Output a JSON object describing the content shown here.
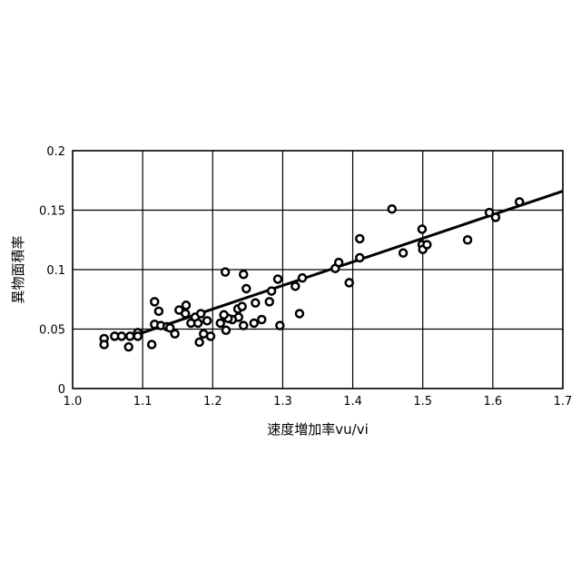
{
  "chart_data": {
    "type": "scatter",
    "title": "",
    "xlabel": "速度増加率vu/vi",
    "ylabel": "異物面積率",
    "xlim": [
      1.0,
      1.7
    ],
    "ylim": [
      0,
      0.2
    ],
    "xticks": [
      "1.0",
      "1.1",
      "1.2",
      "1.3",
      "1.4",
      "1.5",
      "1.6",
      "1.7"
    ],
    "yticks": [
      "0",
      "0.05",
      "0.1",
      "0.15",
      "0.2"
    ],
    "grid": true,
    "legend": "none",
    "marker": "open-circle",
    "color": "#000000",
    "points": [
      [
        1.045,
        0.042
      ],
      [
        1.045,
        0.037
      ],
      [
        1.06,
        0.044
      ],
      [
        1.07,
        0.044
      ],
      [
        1.082,
        0.044
      ],
      [
        1.08,
        0.035
      ],
      [
        1.093,
        0.047
      ],
      [
        1.093,
        0.044
      ],
      [
        1.113,
        0.037
      ],
      [
        1.117,
        0.073
      ],
      [
        1.123,
        0.065
      ],
      [
        1.117,
        0.054
      ],
      [
        1.126,
        0.053
      ],
      [
        1.135,
        0.052
      ],
      [
        1.146,
        0.046
      ],
      [
        1.152,
        0.066
      ],
      [
        1.139,
        0.051
      ],
      [
        1.162,
        0.07
      ],
      [
        1.161,
        0.063
      ],
      [
        1.169,
        0.055
      ],
      [
        1.175,
        0.06
      ],
      [
        1.183,
        0.063
      ],
      [
        1.179,
        0.055
      ],
      [
        1.181,
        0.039
      ],
      [
        1.187,
        0.046
      ],
      [
        1.192,
        0.057
      ],
      [
        1.197,
        0.044
      ],
      [
        1.218,
        0.098
      ],
      [
        1.244,
        0.096
      ],
      [
        1.248,
        0.084
      ],
      [
        1.236,
        0.067
      ],
      [
        1.242,
        0.069
      ],
      [
        1.237,
        0.06
      ],
      [
        1.228,
        0.058
      ],
      [
        1.219,
        0.049
      ],
      [
        1.222,
        0.059
      ],
      [
        1.216,
        0.062
      ],
      [
        1.211,
        0.055
      ],
      [
        1.244,
        0.053
      ],
      [
        1.259,
        0.055
      ],
      [
        1.27,
        0.058
      ],
      [
        1.261,
        0.072
      ],
      [
        1.281,
        0.073
      ],
      [
        1.284,
        0.082
      ],
      [
        1.293,
        0.092
      ],
      [
        1.296,
        0.053
      ],
      [
        1.318,
        0.086
      ],
      [
        1.324,
        0.063
      ],
      [
        1.328,
        0.093
      ],
      [
        1.375,
        0.101
      ],
      [
        1.38,
        0.106
      ],
      [
        1.395,
        0.089
      ],
      [
        1.41,
        0.126
      ],
      [
        1.41,
        0.11
      ],
      [
        1.456,
        0.151
      ],
      [
        1.472,
        0.114
      ],
      [
        1.499,
        0.134
      ],
      [
        1.499,
        0.121
      ],
      [
        1.5,
        0.117
      ],
      [
        1.506,
        0.121
      ],
      [
        1.564,
        0.125
      ],
      [
        1.595,
        0.148
      ],
      [
        1.604,
        0.144
      ],
      [
        1.638,
        0.157
      ]
    ],
    "trendline": {
      "x": [
        1.09,
        1.7
      ],
      "y": [
        0.045,
        0.166
      ]
    }
  }
}
